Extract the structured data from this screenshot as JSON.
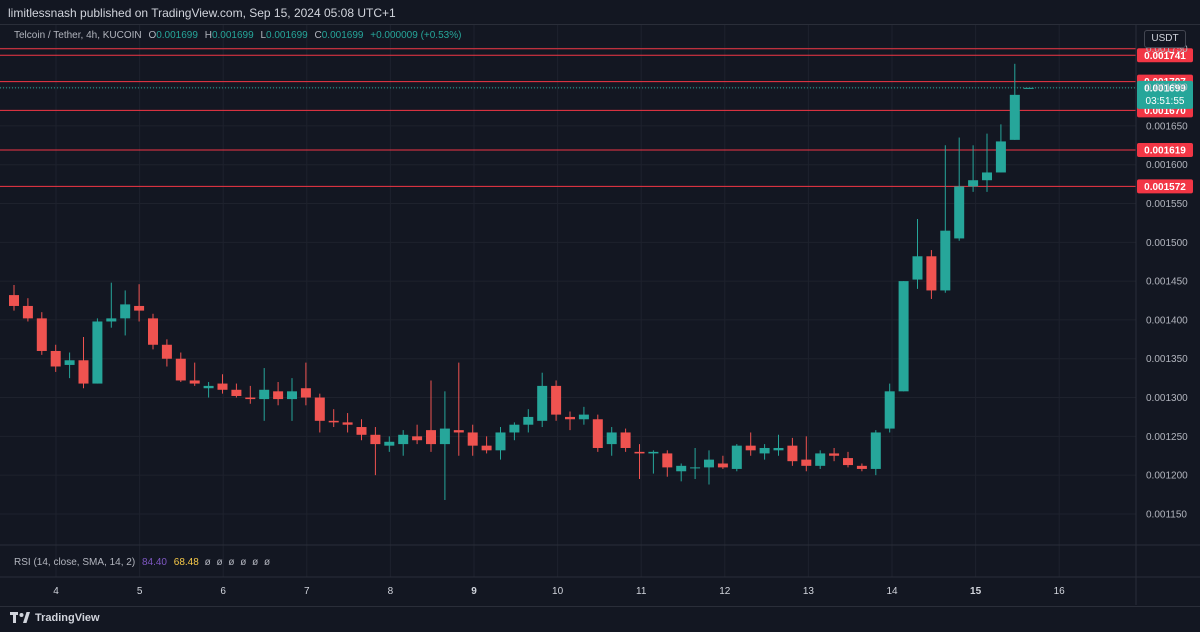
{
  "publisher_line": "limitlessnash published on TradingView.com, Sep 15, 2024 05:08 UTC+1",
  "legend": {
    "symbol": "Telcoin / Tether, 4h, KUCOIN",
    "o_label": "O",
    "o": "0.001699",
    "h_label": "H",
    "h": "0.001699",
    "l_label": "L",
    "l": "0.001699",
    "c_label": "C",
    "c": "0.001699",
    "change": "+0.000009 (+0.53%)"
  },
  "currency_label": "USDT",
  "rsi": {
    "title": "RSI (14, close, SMA, 14, 2)",
    "rsi_value": "84.40",
    "sma_value": "68.48",
    "placeholders": [
      "ø",
      "ø",
      "ø",
      "ø",
      "ø",
      "ø"
    ]
  },
  "brand": "TradingView",
  "colors": {
    "background": "#131722",
    "up": "#26a69a",
    "down": "#ef5350",
    "grid": "#1e222d",
    "level_line": "#f23645",
    "rsi": "#7e57c2",
    "rsi_sma": "#f7c948"
  },
  "chart_data": {
    "type": "candlestick",
    "title": "Telcoin / Tether, 4h, KUCOIN",
    "y_axis": {
      "ylim": [
        0.00111,
        0.00178
      ],
      "ticks": [
        "0.001750",
        "0.001700",
        "0.001650",
        "0.001600",
        "0.001550",
        "0.001500",
        "0.001450",
        "0.001400",
        "0.001350",
        "0.001300",
        "0.001250",
        "0.001200",
        "0.001150"
      ]
    },
    "x_axis": {
      "date_labels": [
        "4",
        "5",
        "6",
        "7",
        "8",
        "9",
        "10",
        "11",
        "12",
        "13",
        "14",
        "15",
        "16"
      ],
      "bold_labels": [
        "9",
        "15"
      ]
    },
    "grid": true,
    "horizontal_levels": [
      "0.001741",
      "0.001707",
      "0.001670",
      "0.001619",
      "0.001572"
    ],
    "last_price": {
      "value": "0.001699",
      "countdown": "03:51:55"
    },
    "candles": [
      [
        0.001432,
        0.001445,
        0.001412,
        0.001418
      ],
      [
        0.001418,
        0.001428,
        0.001398,
        0.001402
      ],
      [
        0.001402,
        0.00141,
        0.001355,
        0.00136
      ],
      [
        0.00136,
        0.001368,
        0.001333,
        0.00134
      ],
      [
        0.001342,
        0.001358,
        0.001325,
        0.001348
      ],
      [
        0.001348,
        0.001378,
        0.001312,
        0.001318
      ],
      [
        0.001318,
        0.001402,
        0.001318,
        0.001398
      ],
      [
        0.001398,
        0.001448,
        0.00139,
        0.001402
      ],
      [
        0.001402,
        0.001438,
        0.00138,
        0.00142
      ],
      [
        0.001418,
        0.001446,
        0.001398,
        0.001412
      ],
      [
        0.001402,
        0.001408,
        0.001362,
        0.001368
      ],
      [
        0.001368,
        0.001375,
        0.00134,
        0.00135
      ],
      [
        0.00135,
        0.001358,
        0.00132,
        0.001322
      ],
      [
        0.001322,
        0.001345,
        0.001315,
        0.001318
      ],
      [
        0.001312,
        0.00132,
        0.0013,
        0.001315
      ],
      [
        0.001318,
        0.00133,
        0.001305,
        0.00131
      ],
      [
        0.00131,
        0.001318,
        0.0013,
        0.001302
      ],
      [
        0.0013,
        0.001315,
        0.001292,
        0.001298
      ],
      [
        0.001298,
        0.001338,
        0.00127,
        0.00131
      ],
      [
        0.001308,
        0.00132,
        0.00129,
        0.001298
      ],
      [
        0.001298,
        0.001325,
        0.00127,
        0.001308
      ],
      [
        0.001312,
        0.001345,
        0.00129,
        0.0013
      ],
      [
        0.0013,
        0.001305,
        0.001255,
        0.00127
      ],
      [
        0.00127,
        0.001285,
        0.001262,
        0.001268
      ],
      [
        0.001268,
        0.00128,
        0.001255,
        0.001265
      ],
      [
        0.001262,
        0.001272,
        0.001245,
        0.001252
      ],
      [
        0.001252,
        0.001262,
        0.0012,
        0.00124
      ],
      [
        0.001238,
        0.00125,
        0.00123,
        0.001243
      ],
      [
        0.00124,
        0.001258,
        0.001225,
        0.001252
      ],
      [
        0.00125,
        0.001265,
        0.00124,
        0.001245
      ],
      [
        0.001258,
        0.001322,
        0.00123,
        0.00124
      ],
      [
        0.00124,
        0.001308,
        0.001168,
        0.00126
      ],
      [
        0.001258,
        0.001345,
        0.001225,
        0.001255
      ],
      [
        0.001255,
        0.001265,
        0.001225,
        0.001238
      ],
      [
        0.001238,
        0.00125,
        0.001228,
        0.001232
      ],
      [
        0.001232,
        0.001262,
        0.00122,
        0.001255
      ],
      [
        0.001255,
        0.001268,
        0.001245,
        0.001265
      ],
      [
        0.001265,
        0.001285,
        0.001255,
        0.001275
      ],
      [
        0.00127,
        0.001332,
        0.001262,
        0.001315
      ],
      [
        0.001315,
        0.001322,
        0.00127,
        0.001278
      ],
      [
        0.001275,
        0.001282,
        0.001258,
        0.001272
      ],
      [
        0.001272,
        0.001288,
        0.001265,
        0.001278
      ],
      [
        0.001272,
        0.001278,
        0.00123,
        0.001235
      ],
      [
        0.00124,
        0.001262,
        0.001225,
        0.001255
      ],
      [
        0.001255,
        0.00126,
        0.00123,
        0.001235
      ],
      [
        0.00123,
        0.00124,
        0.001195,
        0.001228
      ],
      [
        0.001228,
        0.001232,
        0.001202,
        0.00123
      ],
      [
        0.001228,
        0.001232,
        0.001198,
        0.00121
      ],
      [
        0.001205,
        0.001215,
        0.001192,
        0.001212
      ],
      [
        0.00121,
        0.001235,
        0.001195,
        0.00121
      ],
      [
        0.00121,
        0.001232,
        0.001188,
        0.00122
      ],
      [
        0.001215,
        0.001225,
        0.001208,
        0.00121
      ],
      [
        0.001208,
        0.00124,
        0.001205,
        0.001238
      ],
      [
        0.001238,
        0.001255,
        0.001225,
        0.001232
      ],
      [
        0.001228,
        0.00124,
        0.00122,
        0.001235
      ],
      [
        0.001232,
        0.001252,
        0.001225,
        0.001235
      ],
      [
        0.001238,
        0.001248,
        0.001212,
        0.001218
      ],
      [
        0.00122,
        0.00125,
        0.001205,
        0.001212
      ],
      [
        0.001212,
        0.001232,
        0.001208,
        0.001228
      ],
      [
        0.001228,
        0.001235,
        0.001218,
        0.001225
      ],
      [
        0.001222,
        0.00123,
        0.00121,
        0.001213
      ],
      [
        0.001212,
        0.001215,
        0.001205,
        0.001208
      ],
      [
        0.001208,
        0.001258,
        0.0012,
        0.001255
      ],
      [
        0.00126,
        0.001318,
        0.001255,
        0.001308
      ],
      [
        0.001308,
        0.00145,
        0.001308,
        0.00145
      ],
      [
        0.001452,
        0.00153,
        0.00144,
        0.001482
      ],
      [
        0.001482,
        0.00149,
        0.001427,
        0.001438
      ],
      [
        0.001438,
        0.001625,
        0.001435,
        0.001515
      ],
      [
        0.001505,
        0.001635,
        0.001502,
        0.001572
      ],
      [
        0.001572,
        0.001625,
        0.001565,
        0.00158
      ],
      [
        0.00158,
        0.00164,
        0.001565,
        0.00159
      ],
      [
        0.00159,
        0.001652,
        0.00159,
        0.00163
      ],
      [
        0.001632,
        0.00173,
        0.001632,
        0.00169
      ],
      [
        0.001699,
        0.001699,
        0.001699,
        0.001699
      ]
    ]
  }
}
